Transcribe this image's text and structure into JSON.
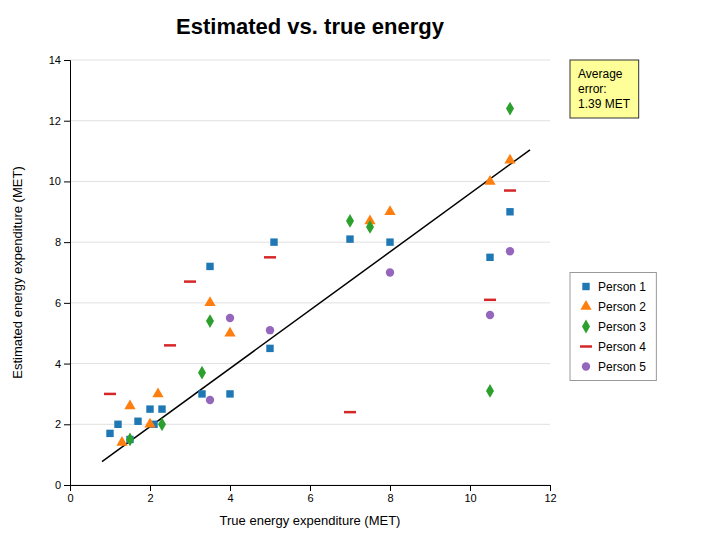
{
  "chart_data": {
    "type": "scatter",
    "title": "Estimated vs. true energy",
    "xlabel": "True energy expenditure (MET)",
    "ylabel": "Estimated energy expenditure (MET)",
    "xlim": [
      0,
      12
    ],
    "ylim": [
      0,
      14
    ],
    "xticks": [
      0,
      2,
      4,
      6,
      8,
      10,
      12
    ],
    "yticks": [
      0,
      2,
      4,
      6,
      8,
      10,
      12,
      14
    ],
    "grid": true,
    "legend": "right",
    "annotation": "Average\nerror:\n1.39 MET",
    "series": [
      {
        "type": "line",
        "color": "black",
        "x": [
          0.8,
          11.5
        ],
        "values": [
          0.768,
          11.04
        ]
      },
      {
        "type": "scatter",
        "name": "Person 1",
        "marker": "square",
        "x": [
          1.0,
          1.2,
          1.5,
          1.7,
          2.0,
          2.1,
          2.3,
          3.3,
          3.5,
          4.0,
          5.0,
          5.1,
          7.0,
          8.0,
          10.5,
          11.0
        ],
        "values": [
          1.7,
          2.0,
          1.5,
          2.1,
          2.5,
          2.0,
          2.5,
          3.0,
          7.2,
          3.0,
          4.5,
          8.0,
          8.1,
          8.0,
          7.5,
          9.0
        ]
      },
      {
        "type": "scatter",
        "name": "Person 2",
        "marker": "triangle",
        "x": [
          1.3,
          1.5,
          2.0,
          2.2,
          3.5,
          4.0,
          7.5,
          8.0,
          10.5,
          11.0
        ],
        "values": [
          1.4,
          2.6,
          2.0,
          3.0,
          6.0,
          5.0,
          8.7,
          9.0,
          10.0,
          10.7
        ]
      },
      {
        "type": "scatter",
        "name": "Person 3",
        "marker": "diamond",
        "x": [
          1.5,
          2.3,
          3.3,
          3.5,
          7.0,
          7.5,
          10.5,
          11.0
        ],
        "values": [
          1.5,
          2.0,
          3.7,
          5.4,
          8.7,
          8.5,
          3.1,
          12.4
        ]
      },
      {
        "type": "scatter",
        "name": "Person 4",
        "marker": "hline",
        "x": [
          1.0,
          2.5,
          3.0,
          5.0,
          7.0,
          10.5,
          11.0
        ],
        "values": [
          3.0,
          4.6,
          6.7,
          7.5,
          2.4,
          6.1,
          9.7
        ]
      },
      {
        "type": "scatter",
        "name": "Person 5",
        "marker": "circle",
        "x": [
          3.5,
          4.0,
          5.0,
          8.0,
          10.5,
          11.0
        ],
        "values": [
          2.8,
          5.5,
          5.1,
          7.0,
          5.6,
          7.7
        ]
      }
    ]
  }
}
